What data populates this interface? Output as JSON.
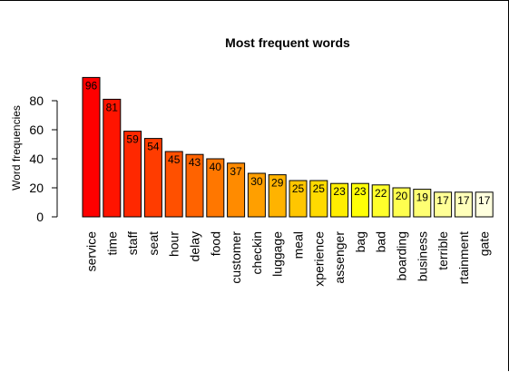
{
  "chart_data": {
    "type": "bar",
    "title": "Most frequent words",
    "xlabel": "",
    "ylabel": "Word frequencies",
    "ylim": [
      0,
      100
    ],
    "yticks": [
      0,
      20,
      40,
      60,
      80
    ],
    "categories": [
      "service",
      "time",
      "staff",
      "seat",
      "hour",
      "delay",
      "food",
      "customer",
      "checkin",
      "luggage",
      "meal",
      "experience",
      "passenger",
      "bag",
      "bad",
      "boarding",
      "business",
      "terrible",
      "entertainment",
      "gate"
    ],
    "category_labels": [
      "service",
      "time",
      "staff",
      "seat",
      "hour",
      "delay",
      "food",
      "customer",
      "checkin",
      "luggage",
      "meal",
      "xperience",
      "assenger",
      "bag",
      "bad",
      "boarding",
      "business",
      "terrible",
      "rtainment",
      "gate"
    ],
    "values": [
      96,
      81,
      59,
      54,
      45,
      43,
      40,
      37,
      30,
      29,
      25,
      25,
      23,
      23,
      22,
      20,
      19,
      17,
      17,
      17
    ],
    "colors": [
      "#FF0000",
      "#FF1400",
      "#FF2800",
      "#FF3C00",
      "#FF5000",
      "#FF6300",
      "#FF7700",
      "#FF8B00",
      "#FF9F00",
      "#FFB300",
      "#FFC600",
      "#FFDA00",
      "#FFEE00",
      "#FFFF07",
      "#FFFF2B",
      "#FFFF4F",
      "#FFFF73",
      "#FFFF97",
      "#FFFFBA",
      "#FFFFDE"
    ],
    "grid": false,
    "legend": "none"
  }
}
